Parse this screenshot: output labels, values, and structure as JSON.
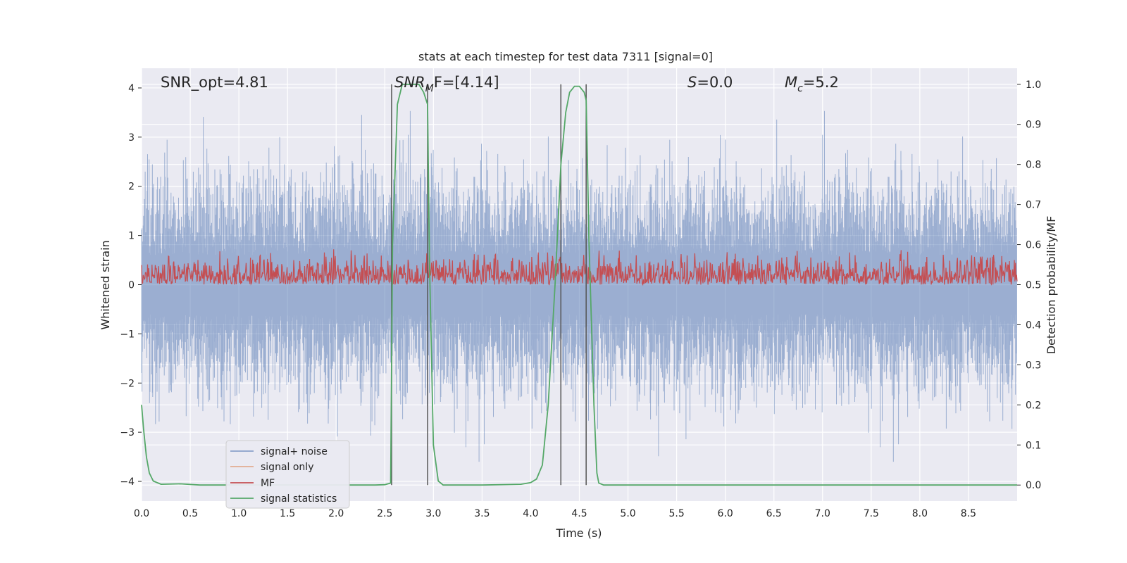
{
  "chart_data": {
    "type": "line",
    "title": "stats at each timestep for test data 7311 [signal=0]",
    "xlabel": "Time (s)",
    "ylabel": "Whitened strain",
    "ylabel_right": "Detection probability/MF",
    "xlim": [
      0,
      9.0
    ],
    "ylim": [
      -4.4,
      4.4
    ],
    "ylim_right": [
      -0.04,
      1.04
    ],
    "x_ticks": [
      "0.0",
      "0.5",
      "1.0",
      "1.5",
      "2.0",
      "2.5",
      "3.0",
      "3.5",
      "4.0",
      "4.5",
      "5.0",
      "5.5",
      "6.0",
      "6.5",
      "7.0",
      "7.5",
      "8.0",
      "8.5"
    ],
    "y_ticks": [
      "4",
      "3",
      "2",
      "1",
      "0",
      "−1",
      "−2",
      "−3",
      "−4"
    ],
    "y_ticks_right": [
      "1.0",
      "0.9",
      "0.8",
      "0.7",
      "0.6",
      "0.5",
      "0.4",
      "0.3",
      "0.2",
      "0.1",
      "0.0"
    ],
    "grid": true,
    "legend_position": "lower-left",
    "annotations": {
      "snr_opt": "SNR_opt=4.81",
      "snr_mf_main": "SNR",
      "snr_mf_sub": "M",
      "snr_mf_rest": "F=[4.14]",
      "s_italic": "S",
      "s_rest": "=0.0",
      "mc_main": "M",
      "mc_sub": "c",
      "mc_rest": "=5.2"
    },
    "vertical_markers": [
      2.57,
      2.94,
      4.31,
      4.57
    ],
    "series": [
      {
        "name": "signal+ noise",
        "color": "#4c72b0",
        "axis": "left",
        "description_values": "whitened noise, approx range -3.6 to 4.0",
        "range": [
          -3.6,
          4.0
        ]
      },
      {
        "name": "signal only",
        "color": "#dd8452",
        "axis": "left",
        "values": []
      },
      {
        "name": "MF",
        "color": "#c44e52",
        "axis": "right",
        "range": [
          0.5,
          0.62
        ]
      },
      {
        "name": "signal statistics",
        "color": "#55a868",
        "axis": "right",
        "x": [
          0.0,
          0.02,
          0.05,
          0.08,
          0.12,
          0.2,
          0.4,
          0.6,
          1.0,
          1.5,
          2.0,
          2.4,
          2.5,
          2.56,
          2.58,
          2.63,
          2.68,
          2.75,
          2.85,
          2.9,
          2.94,
          2.96,
          3.0,
          3.05,
          3.1,
          3.5,
          3.9,
          4.0,
          4.06,
          4.12,
          4.18,
          4.25,
          4.31,
          4.36,
          4.4,
          4.45,
          4.5,
          4.55,
          4.57,
          4.6,
          4.65,
          4.68,
          4.7,
          4.75,
          5.0,
          6.0,
          7.0,
          8.0,
          9.0
        ],
        "values": [
          0.2,
          0.14,
          0.07,
          0.03,
          0.01,
          0.002,
          0.003,
          0.0,
          0.0,
          0.0,
          0.0,
          0.0,
          0.001,
          0.005,
          0.6,
          0.95,
          1.0,
          1.0,
          1.0,
          0.98,
          0.95,
          0.55,
          0.1,
          0.01,
          0.0,
          0.0,
          0.002,
          0.006,
          0.015,
          0.05,
          0.2,
          0.5,
          0.8,
          0.93,
          0.98,
          0.995,
          0.995,
          0.98,
          0.96,
          0.6,
          0.2,
          0.03,
          0.005,
          0.0,
          0.0,
          0.0,
          0.0,
          0.0,
          0.0
        ]
      }
    ]
  }
}
